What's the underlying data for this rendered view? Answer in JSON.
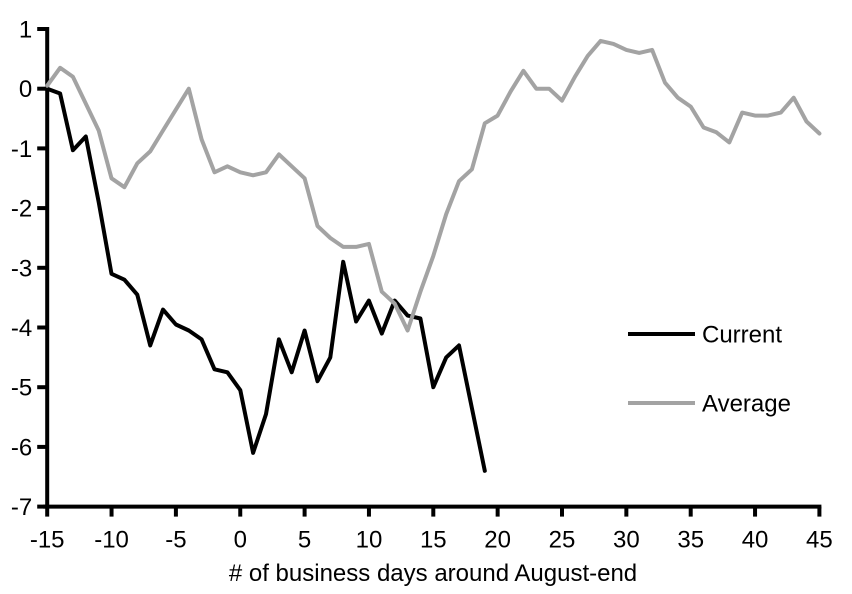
{
  "chart_data": {
    "type": "line",
    "title": "",
    "xlabel": "# of business days around August-end",
    "ylabel": "",
    "xlim": [
      -15,
      45
    ],
    "ylim": [
      -7,
      1
    ],
    "x_ticks": [
      -15,
      -10,
      -5,
      0,
      5,
      10,
      15,
      20,
      25,
      30,
      35,
      40,
      45
    ],
    "y_ticks": [
      1,
      0,
      -1,
      -2,
      -3,
      -4,
      -5,
      -6,
      -7
    ],
    "grid": false,
    "legend_position": "right-middle",
    "axis_color": "#000000",
    "series": [
      {
        "name": "Current",
        "color": "#000000",
        "x_start": -15,
        "x_step": 1,
        "values": [
          0,
          -0.08,
          -1.03,
          -0.8,
          -1.9,
          -3.1,
          -3.2,
          -3.45,
          -4.3,
          -3.7,
          -3.95,
          -4.05,
          -4.2,
          -4.7,
          -4.75,
          -5.05,
          -6.1,
          -5.45,
          -4.2,
          -4.75,
          -4.05,
          -4.9,
          -4.5,
          -2.9,
          -3.9,
          -3.55,
          -4.1,
          -3.55,
          -3.8,
          -3.85,
          -5.0,
          -4.5,
          -4.3,
          -5.35,
          -6.4
        ]
      },
      {
        "name": "Average",
        "color": "#a3a3a3",
        "x_start": -15,
        "x_step": 1,
        "values": [
          0.05,
          0.35,
          0.2,
          -0.25,
          -0.7,
          -1.5,
          -1.65,
          -1.25,
          -1.05,
          -0.7,
          -0.35,
          0.0,
          -0.85,
          -1.4,
          -1.3,
          -1.4,
          -1.45,
          -1.4,
          -1.1,
          -1.3,
          -1.5,
          -2.3,
          -2.5,
          -2.65,
          -2.65,
          -2.6,
          -3.4,
          -3.6,
          -4.05,
          -3.4,
          -2.8,
          -2.1,
          -1.55,
          -1.35,
          -0.58,
          -0.45,
          -0.05,
          0.3,
          0.0,
          0.0,
          -0.2,
          0.2,
          0.55,
          0.8,
          0.75,
          0.65,
          0.6,
          0.65,
          0.1,
          -0.15,
          -0.3,
          -0.65,
          -0.73,
          -0.9,
          -0.4,
          -0.45,
          -0.45,
          -0.4,
          -0.15,
          -0.55,
          -0.75
        ]
      }
    ],
    "legend": {
      "entries": [
        "Current",
        "Average"
      ]
    }
  }
}
